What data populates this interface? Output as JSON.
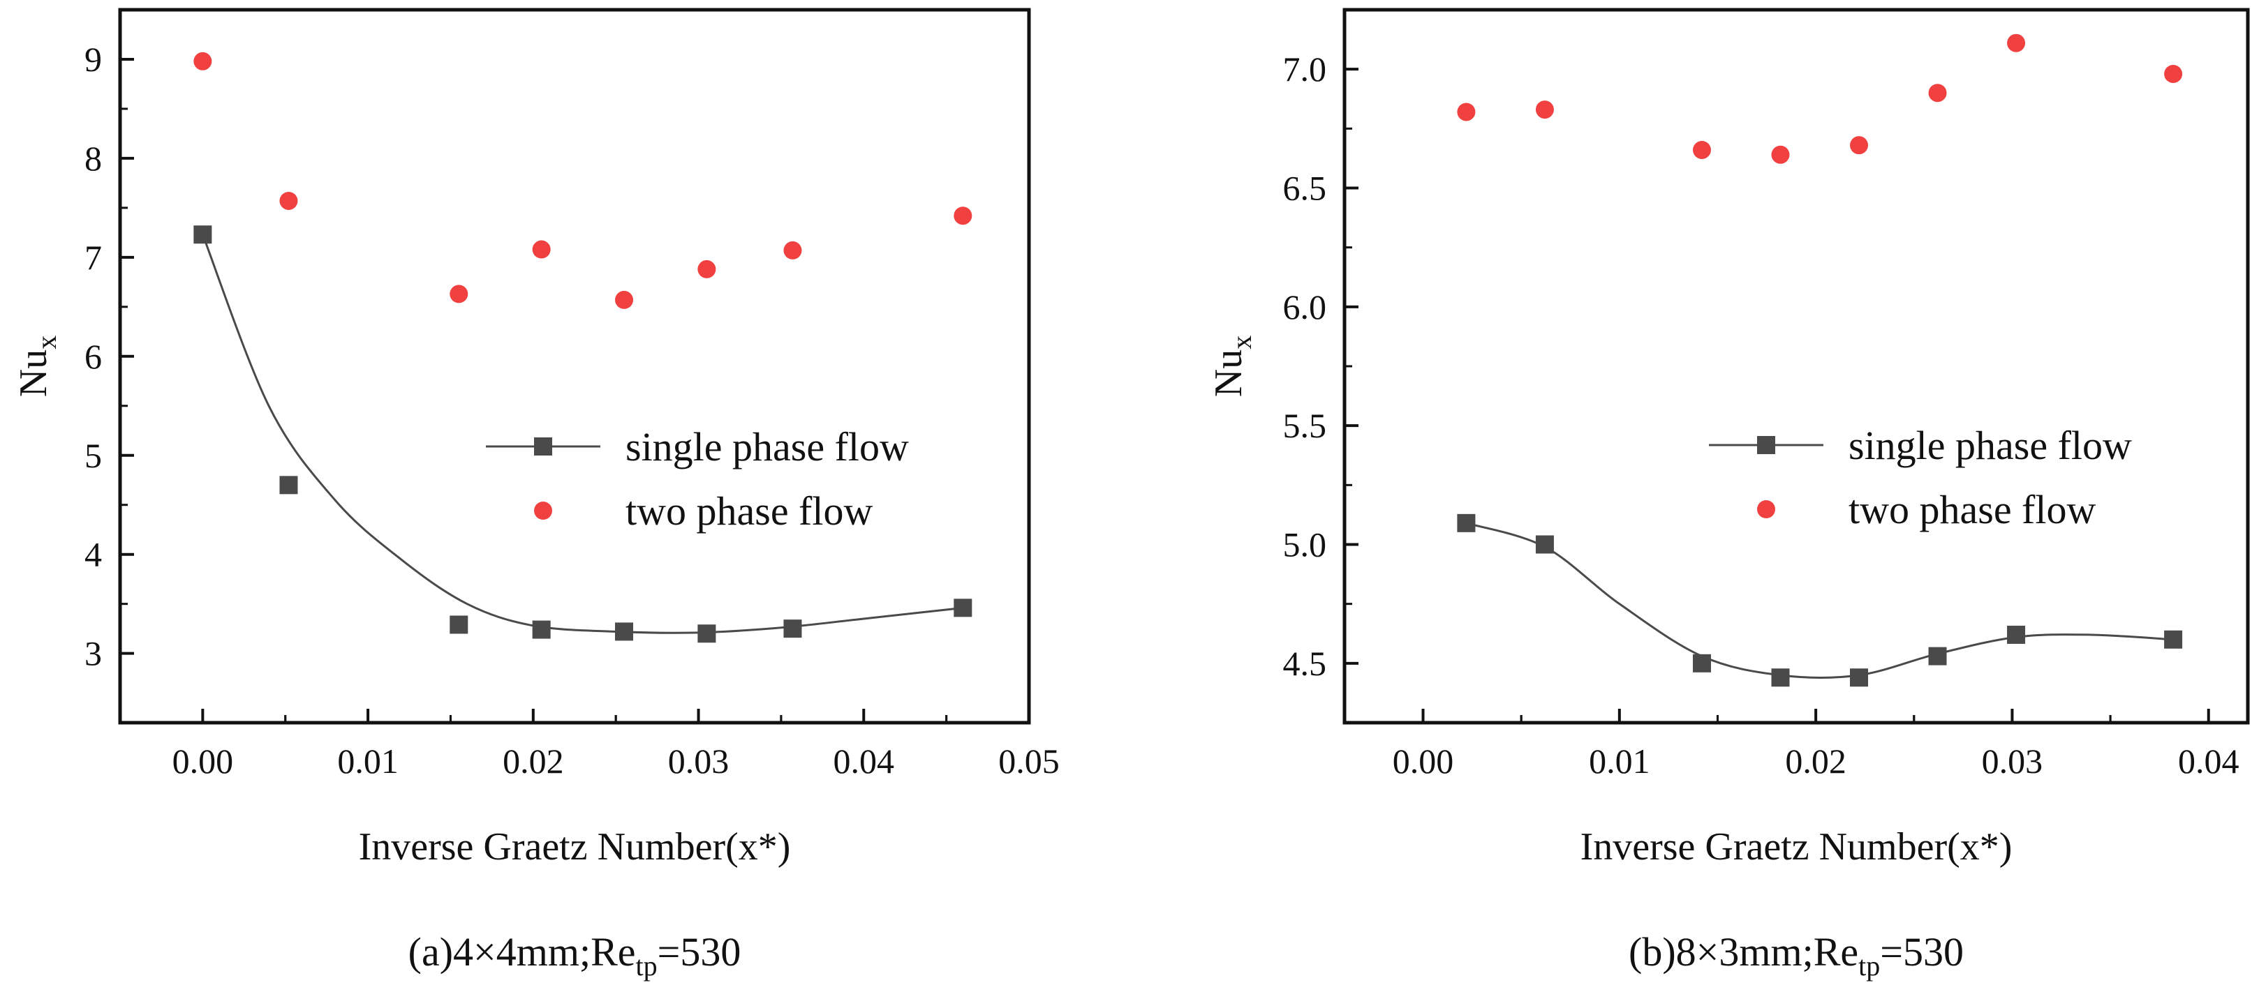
{
  "chart_data": [
    {
      "type": "scatter",
      "panel": "a",
      "caption": {
        "prefix": "(a)4×4mm;Re",
        "sub": "tp",
        "suffix": "=530"
      },
      "xlabel": "Inverse Graetz Number(x*)",
      "ylabel": {
        "main": "Nu",
        "sub": "x"
      },
      "xlim": [
        -0.005,
        0.05
      ],
      "ylim": [
        2.3,
        9.5
      ],
      "xticks": [
        0.0,
        0.01,
        0.02,
        0.03,
        0.04,
        0.05
      ],
      "xtick_labels": [
        "0.00",
        "0.01",
        "0.02",
        "0.03",
        "0.04",
        "0.05"
      ],
      "yticks": [
        3,
        4,
        5,
        6,
        7,
        8,
        9
      ],
      "ytick_labels": [
        "3",
        "4",
        "5",
        "6",
        "7",
        "8",
        "9"
      ],
      "legend_position": "center-right",
      "series": [
        {
          "name": "single phase flow",
          "marker": "square",
          "color": "#4a4a4a",
          "fit_curve": true,
          "x": [
            0.0,
            0.0052,
            0.0155,
            0.0205,
            0.0255,
            0.0305,
            0.0357,
            0.046
          ],
          "y": [
            7.23,
            4.7,
            3.29,
            3.24,
            3.22,
            3.2,
            3.25,
            3.46
          ],
          "curve": [
            [
              0.0,
              7.23
            ],
            [
              0.004,
              5.5
            ],
            [
              0.008,
              4.55
            ],
            [
              0.012,
              3.95
            ],
            [
              0.016,
              3.5
            ],
            [
              0.02,
              3.28
            ],
            [
              0.025,
              3.22
            ],
            [
              0.03,
              3.21
            ],
            [
              0.035,
              3.26
            ],
            [
              0.04,
              3.35
            ],
            [
              0.046,
              3.46
            ]
          ]
        },
        {
          "name": "two phase flow",
          "marker": "circle",
          "color": "#f04040",
          "fit_curve": false,
          "x": [
            0.0,
            0.0052,
            0.0155,
            0.0205,
            0.0255,
            0.0305,
            0.0357,
            0.046
          ],
          "y": [
            8.98,
            7.57,
            6.63,
            7.08,
            6.57,
            6.88,
            7.07,
            7.42
          ]
        }
      ]
    },
    {
      "type": "scatter",
      "panel": "b",
      "caption": {
        "prefix": "(b)8×3mm;Re",
        "sub": "tp",
        "suffix": "=530"
      },
      "xlabel": "Inverse Graetz Number(x*)",
      "ylabel": {
        "main": "Nu",
        "sub": "x"
      },
      "xlim": [
        -0.004,
        0.042
      ],
      "ylim": [
        4.25,
        7.25
      ],
      "xticks": [
        0.0,
        0.01,
        0.02,
        0.03,
        0.04
      ],
      "xtick_labels": [
        "0.00",
        "0.01",
        "0.02",
        "0.03",
        "0.04"
      ],
      "yticks": [
        4.5,
        5.0,
        5.5,
        6.0,
        6.5,
        7.0
      ],
      "ytick_labels": [
        "4.5",
        "5.0",
        "5.5",
        "6.0",
        "6.5",
        "7.0"
      ],
      "legend_position": "center-right",
      "series": [
        {
          "name": "single phase flow",
          "marker": "square",
          "color": "#4a4a4a",
          "fit_curve": true,
          "x": [
            0.0022,
            0.0062,
            0.0142,
            0.0182,
            0.0222,
            0.0262,
            0.0302,
            0.0382
          ],
          "y": [
            5.09,
            5.0,
            4.5,
            4.44,
            4.44,
            4.53,
            4.62,
            4.6
          ],
          "curve": [
            [
              0.0022,
              5.09
            ],
            [
              0.0062,
              4.99
            ],
            [
              0.01,
              4.75
            ],
            [
              0.0142,
              4.53
            ],
            [
              0.0182,
              4.45
            ],
            [
              0.0222,
              4.45
            ],
            [
              0.0262,
              4.54
            ],
            [
              0.0302,
              4.61
            ],
            [
              0.034,
              4.62
            ],
            [
              0.0382,
              4.6
            ]
          ]
        },
        {
          "name": "two phase flow",
          "marker": "circle",
          "color": "#f04040",
          "fit_curve": false,
          "x": [
            0.0022,
            0.0062,
            0.0142,
            0.0182,
            0.0222,
            0.0262,
            0.0302,
            0.0382
          ],
          "y": [
            6.82,
            6.83,
            6.66,
            6.64,
            6.68,
            6.9,
            7.11,
            6.98
          ]
        }
      ]
    }
  ]
}
